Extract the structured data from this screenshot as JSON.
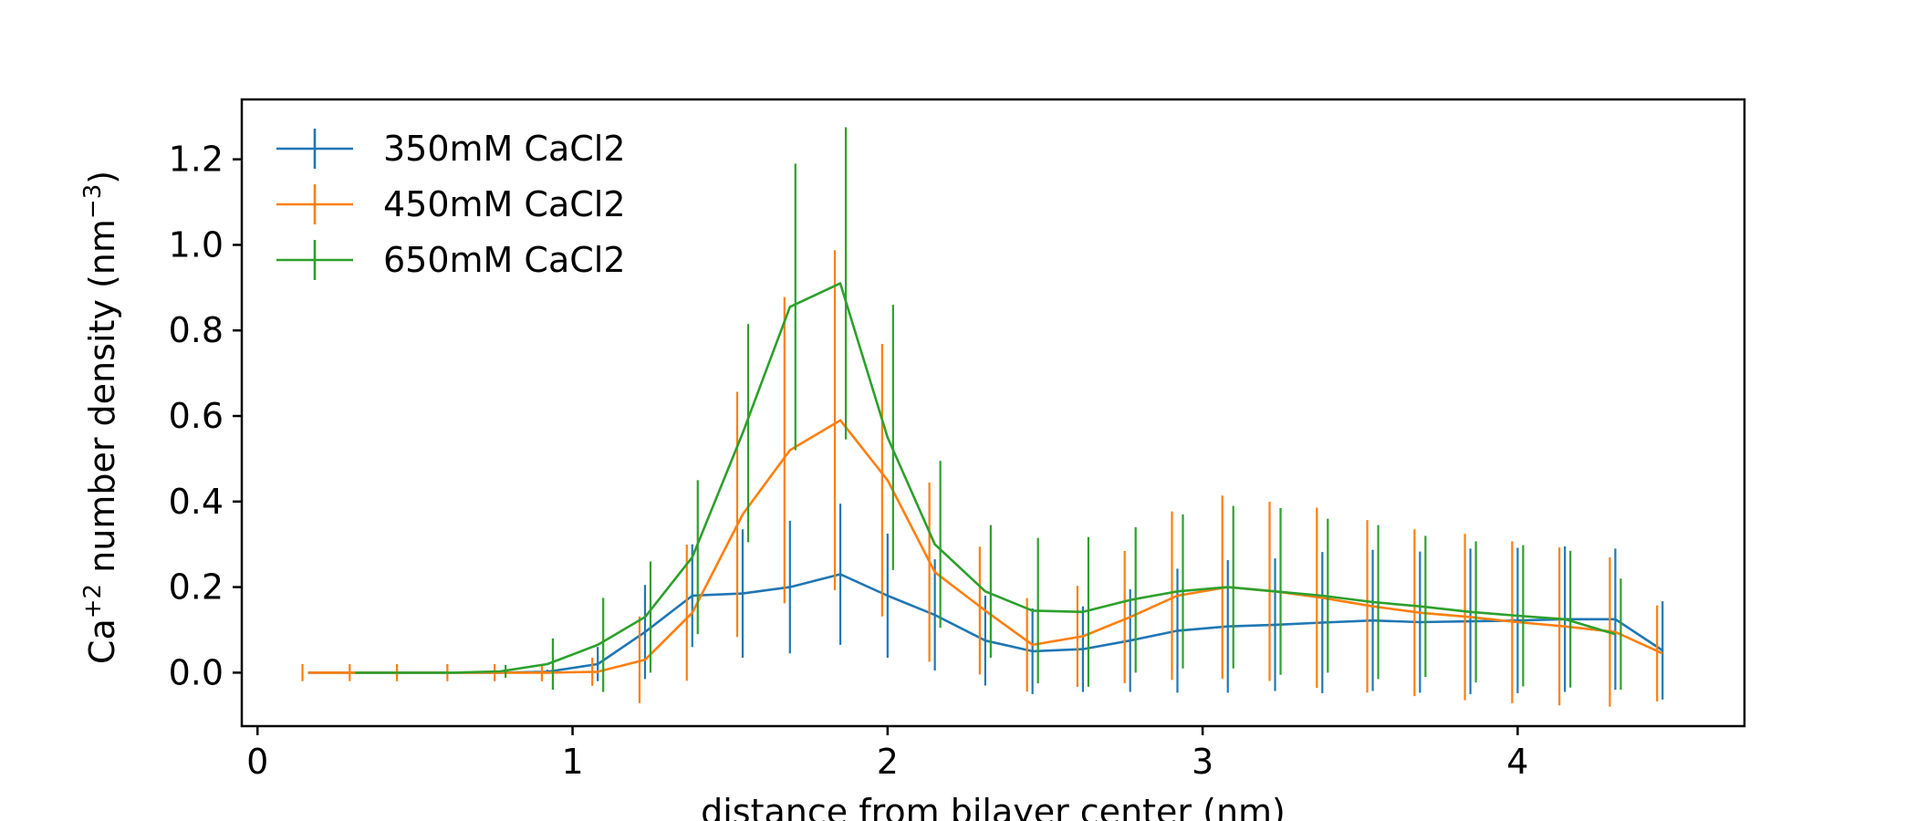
{
  "chart_data": {
    "type": "line",
    "title": "",
    "xlabel": "distance from bilayer center (nm)",
    "ylabel": {
      "base": "Ca",
      "base_sup": "+2",
      "middle": " number density (nm",
      "end_sup": "−3",
      "close": ")"
    },
    "xlim": [
      -0.05,
      4.72
    ],
    "ylim": [
      -0.125,
      1.34
    ],
    "xticks": [
      0,
      1,
      2,
      3,
      4
    ],
    "yticks": [
      0.0,
      0.2,
      0.4,
      0.6,
      0.8,
      1.0,
      1.2
    ],
    "grid": false,
    "legend_position": "top-left",
    "series": [
      {
        "name": "350mM CaCl2",
        "color": "#1f77b4",
        "x": [
          0.16,
          0.31,
          0.46,
          0.62,
          0.77,
          0.92,
          1.08,
          1.23,
          1.38,
          1.54,
          1.69,
          1.85,
          2.0,
          2.15,
          2.31,
          2.46,
          2.62,
          2.77,
          2.92,
          3.08,
          3.23,
          3.38,
          3.54,
          3.69,
          3.85,
          4.0,
          4.15,
          4.31,
          4.46
        ],
        "y": [
          0.0,
          0.0,
          0.0,
          0.0,
          0.0,
          0.002,
          0.02,
          0.095,
          0.18,
          0.185,
          0.2,
          0.23,
          0.18,
          0.135,
          0.075,
          0.05,
          0.055,
          0.075,
          0.098,
          0.108,
          0.112,
          0.117,
          0.122,
          0.118,
          0.12,
          0.122,
          0.125,
          0.125,
          0.052
        ],
        "err": [
          0.0,
          0.0,
          0.0,
          0.0,
          0.0,
          0.005,
          0.04,
          0.11,
          0.12,
          0.15,
          0.155,
          0.165,
          0.145,
          0.13,
          0.105,
          0.1,
          0.1,
          0.12,
          0.145,
          0.155,
          0.155,
          0.165,
          0.165,
          0.165,
          0.17,
          0.17,
          0.17,
          0.165,
          0.115
        ]
      },
      {
        "name": "450mM CaCl2",
        "color": "#ff7f0e",
        "x": [
          0.16,
          0.31,
          0.46,
          0.62,
          0.77,
          0.92,
          1.08,
          1.23,
          1.38,
          1.54,
          1.69,
          1.85,
          2.0,
          2.15,
          2.31,
          2.46,
          2.62,
          2.77,
          2.92,
          3.08,
          3.23,
          3.38,
          3.54,
          3.69,
          3.85,
          4.0,
          4.15,
          4.31,
          4.46
        ],
        "y": [
          0.0,
          0.0,
          0.0,
          0.0,
          0.0,
          0.0,
          0.002,
          0.03,
          0.14,
          0.37,
          0.52,
          0.59,
          0.45,
          0.235,
          0.145,
          0.065,
          0.085,
          0.13,
          0.18,
          0.2,
          0.19,
          0.175,
          0.155,
          0.14,
          0.13,
          0.118,
          0.108,
          0.095,
          0.045
        ]
      },
      {
        "name": "650mM CaCl2",
        "color": "#2ca02c",
        "x": [
          0.31,
          0.46,
          0.62,
          0.77,
          0.92,
          1.08,
          1.23,
          1.38,
          1.54,
          1.69,
          1.85,
          2.0,
          2.15,
          2.31,
          2.46,
          2.62,
          2.77,
          2.92,
          3.08,
          3.23,
          3.38,
          3.54,
          3.69,
          3.85,
          4.0,
          4.15,
          4.31
        ],
        "y": [
          0.0,
          0.0,
          0.0,
          0.003,
          0.02,
          0.065,
          0.13,
          0.27,
          0.56,
          0.855,
          0.91,
          0.55,
          0.3,
          0.19,
          0.145,
          0.142,
          0.17,
          0.19,
          0.2,
          0.19,
          0.18,
          0.165,
          0.155,
          0.142,
          0.133,
          0.125,
          0.09
        ],
        "err": [
          0.0,
          0.0,
          0.0,
          0.015,
          0.06,
          0.11,
          0.13,
          0.18,
          0.255,
          0.335,
          0.365,
          0.31,
          0.195,
          0.155,
          0.17,
          0.175,
          0.17,
          0.18,
          0.19,
          0.195,
          0.18,
          0.18,
          0.165,
          0.165,
          0.165,
          0.16,
          0.13
        ]
      }
    ]
  }
}
